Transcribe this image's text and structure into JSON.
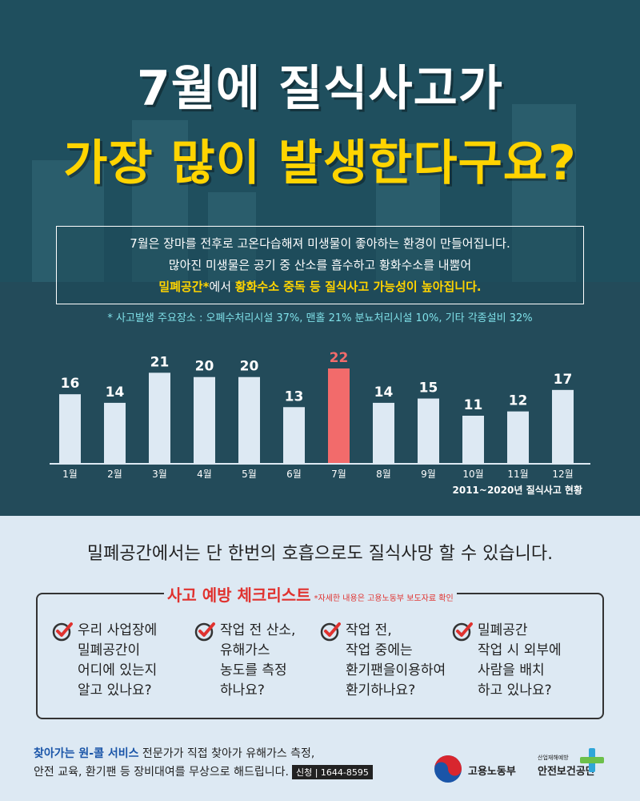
{
  "header": {
    "title_line1": "7월에 질식사고가",
    "title_line2": "가장 많이 발생한다구요?"
  },
  "description": {
    "line1": "7월은 장마를 전후로 고온다습해져 미생물이 좋아하는 환경이 만들어집니다.",
    "line2": "많아진 미생물은 공기 중 산소를 흡수하고 황화수소를 내뿜어",
    "line3_highlight1": "밀폐공간*",
    "line3_plain": "에서 ",
    "line3_highlight2": "황화수소 중독 등 질식사고 가능성이 높아집니다."
  },
  "note": "* 사고발생 주요장소 : 오폐수처리시설 37%, 맨홀 21% 분뇨처리시설 10%, 기타 각종설비 32%",
  "chart_data": {
    "type": "bar",
    "categories": [
      "1월",
      "2월",
      "3월",
      "4월",
      "5월",
      "6월",
      "7월",
      "8월",
      "9월",
      "10월",
      "11월",
      "12월"
    ],
    "values": [
      16,
      14,
      21,
      20,
      20,
      13,
      22,
      14,
      15,
      11,
      12,
      17
    ],
    "highlight_index": 6,
    "bar_color": "#dde9f3",
    "highlight_color": "#f26b6b",
    "source": "2011~2020년 질식사고 현황",
    "ylim": [
      0,
      22
    ]
  },
  "headline": "밀폐공간에서는 단 한번의 호흡으로도 질식사망 할 수 있습니다.",
  "checklist": {
    "title": "사고 예방 체크리스트",
    "subtitle": "*자세한 내용은 고용노동부 보도자료 확인",
    "items": [
      {
        "lines": [
          "우리 사업장에",
          "밀폐공간이",
          "어디에 있는지",
          "알고 있나요?"
        ]
      },
      {
        "lines": [
          "작업 전 산소,",
          "유해가스",
          "농도를 측정",
          "하나요?"
        ]
      },
      {
        "lines": [
          "작업 전,",
          "작업 중에는",
          "환기팬을이용하여",
          "환기하나요?"
        ]
      },
      {
        "lines": [
          "밀폐공간",
          "작업 시 외부에",
          "사람을 배치",
          "하고 있나요?"
        ]
      }
    ]
  },
  "footer": {
    "service_name": "찾아가는 원-콜 서비스",
    "line1_rest": " 전문가가 직접 찾아가 유해가스 측정,",
    "line2": "안전 교육, 환기팬 등 장비대여를 무상으로 해드립니다.",
    "apply_label": "신청 | 1644-8595"
  },
  "logos": {
    "ministry": "고용노동부",
    "agency_small": "산업재해예방",
    "agency": "안전보건공단"
  },
  "colors": {
    "dark_bg": "#1f4f5e",
    "yellow": "#ffd400",
    "red": "#e0322f",
    "light_bg": "#dde9f3"
  }
}
